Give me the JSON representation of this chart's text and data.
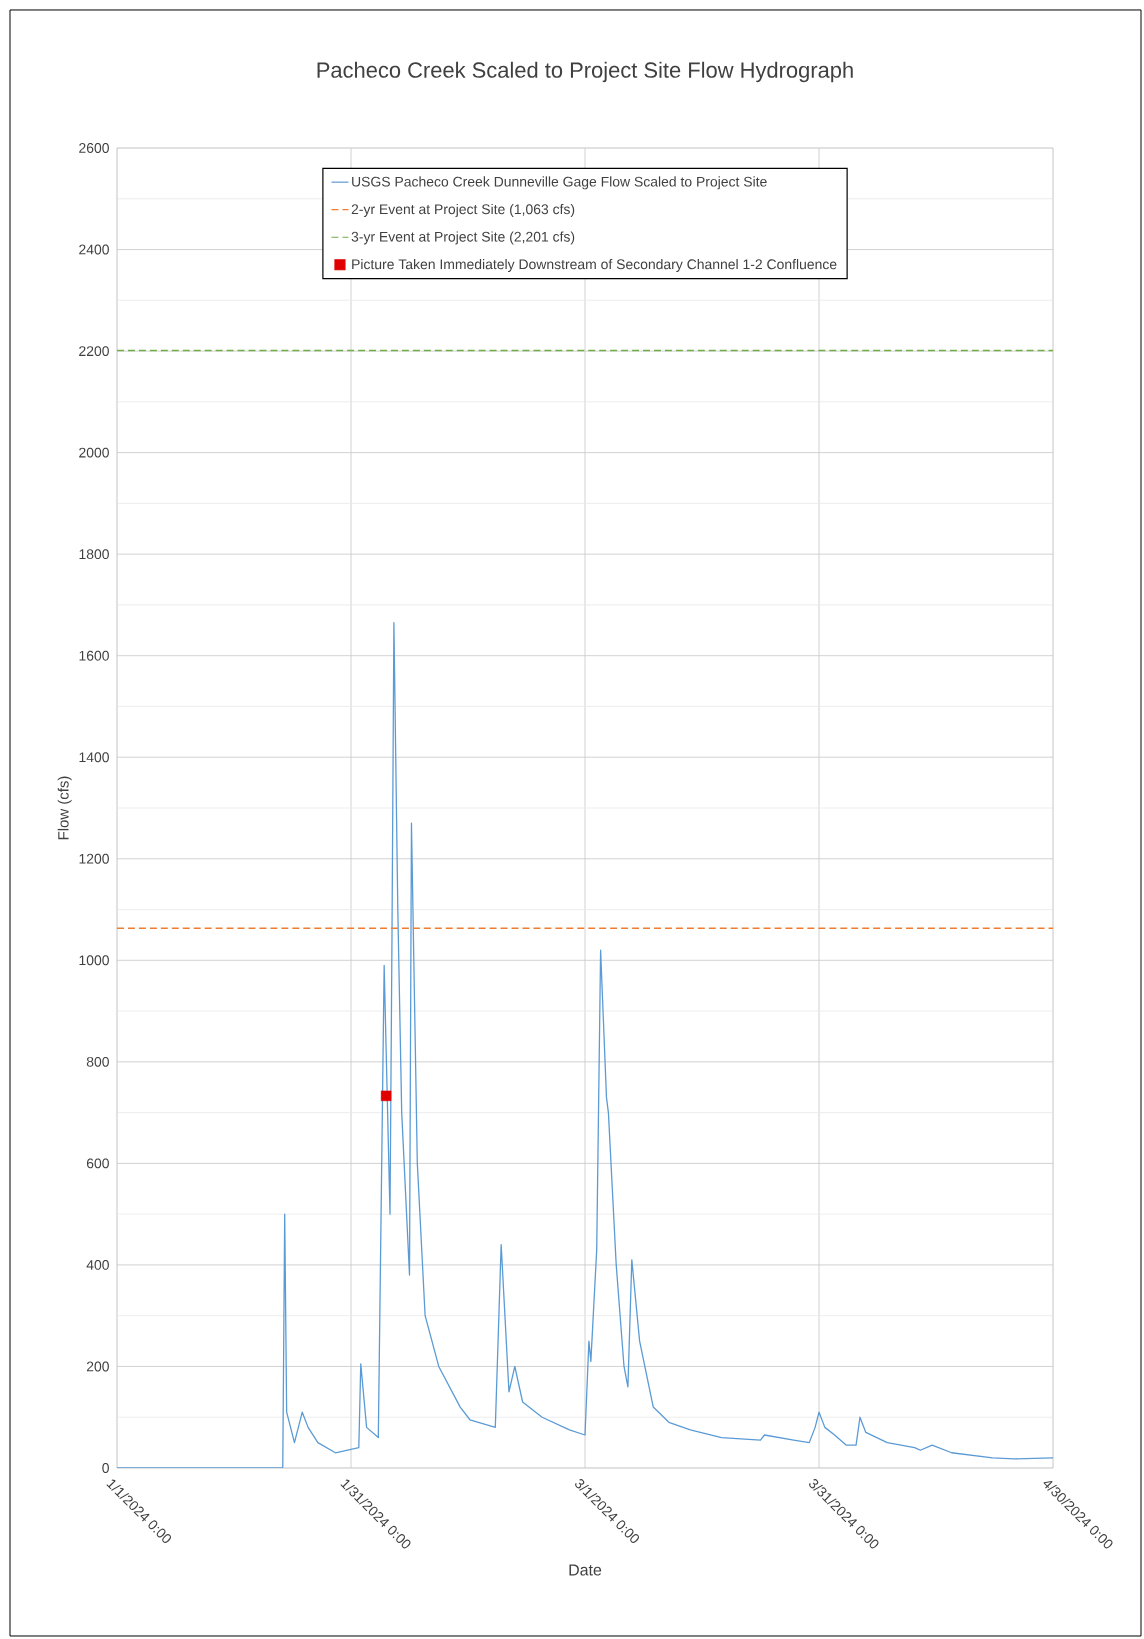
{
  "chart_data": {
    "type": "line",
    "title": "Pacheco Creek Scaled to Project Site Flow Hydrograph",
    "xlabel": "Date",
    "ylabel": "Flow (cfs)",
    "xlim": [
      "2024-01-01T00:00",
      "2024-04-30T00:00"
    ],
    "xticks": [
      {
        "value": "2024-01-01T00:00",
        "label": "1/1/2024 0:00"
      },
      {
        "value": "2024-01-31T00:00",
        "label": "1/31/2024 0:00"
      },
      {
        "value": "2024-03-01T00:00",
        "label": "3/1/2024 0:00"
      },
      {
        "value": "2024-03-31T00:00",
        "label": "3/31/2024 0:00"
      },
      {
        "value": "2024-04-30T00:00",
        "label": "4/30/2024 0:00"
      }
    ],
    "ylim": [
      0,
      2600
    ],
    "yticks": [
      0,
      200,
      400,
      600,
      800,
      1000,
      1200,
      1400,
      1600,
      1800,
      2000,
      2200,
      2400,
      2600
    ],
    "grid": true,
    "legend": "top",
    "series": [
      {
        "name": "USGS Pacheco Creek Dunneville Gage Flow Scaled to Project Site",
        "color": "#5b9bd5",
        "marker": "none",
        "line_style": "solid",
        "x": [
          "2024-01-01T00:00",
          "2024-01-22T06:00",
          "2024-01-22T12:00",
          "2024-01-22T18:00",
          "2024-01-23T18:00",
          "2024-01-24T18:00",
          "2024-01-25T12:00",
          "2024-01-26T18:00",
          "2024-01-29T00:00",
          "2024-02-01T00:00",
          "2024-02-01T06:00",
          "2024-02-02T00:00",
          "2024-02-03T12:00",
          "2024-02-04T06:00",
          "2024-02-05T00:00",
          "2024-02-05T06:00",
          "2024-02-05T12:00",
          "2024-02-06T00:00",
          "2024-02-06T12:00",
          "2024-02-07T12:00",
          "2024-02-07T18:00",
          "2024-02-08T12:00",
          "2024-02-09T12:00",
          "2024-02-11T06:00",
          "2024-02-14T00:00",
          "2024-02-15T06:00",
          "2024-02-18T12:00",
          "2024-02-19T06:00",
          "2024-02-20T06:00",
          "2024-02-21T00:00",
          "2024-02-22T00:00",
          "2024-02-24T12:00",
          "2024-02-28T00:00",
          "2024-03-01T00:00",
          "2024-03-01T12:00",
          "2024-03-01T18:00",
          "2024-03-02T12:00",
          "2024-03-03T00:00",
          "2024-03-03T18:00",
          "2024-03-04T00:00",
          "2024-03-05T00:00",
          "2024-03-06T00:00",
          "2024-03-06T12:00",
          "2024-03-07T00:00",
          "2024-03-08T00:00",
          "2024-03-09T18:00",
          "2024-03-11T18:00",
          "2024-03-14T12:00",
          "2024-03-18T12:00",
          "2024-03-23T12:00",
          "2024-03-24T00:00",
          "2024-03-27T18:00",
          "2024-03-29T18:00",
          "2024-03-30T12:00",
          "2024-03-31T00:00",
          "2024-03-31T18:00",
          "2024-04-02T00:00",
          "2024-04-03T12:00",
          "2024-04-04T18:00",
          "2024-04-05T06:00",
          "2024-04-06T00:00",
          "2024-04-08T18:00",
          "2024-04-12T06:00",
          "2024-04-13T00:00",
          "2024-04-14T12:00",
          "2024-04-17T00:00",
          "2024-04-22T06:00",
          "2024-04-25T00:00",
          "2024-04-30T00:00"
        ],
        "values": [
          0,
          0,
          500,
          110,
          50,
          110,
          80,
          50,
          30,
          40,
          205,
          80,
          60,
          990,
          500,
          1040,
          1665,
          1100,
          700,
          380,
          1270,
          600,
          300,
          200,
          120,
          95,
          80,
          440,
          150,
          200,
          130,
          100,
          75,
          65,
          250,
          210,
          430,
          1020,
          730,
          700,
          400,
          200,
          160,
          410,
          250,
          120,
          90,
          75,
          60,
          55,
          65,
          55,
          50,
          80,
          110,
          80,
          65,
          45,
          45,
          100,
          70,
          50,
          40,
          35,
          45,
          30,
          20,
          18,
          20
        ]
      },
      {
        "name": "Picture Taken Immediately Downstream of Secondary Channel 1-2 Confluence",
        "type": "scatter",
        "color": "#e00000",
        "marker": "square",
        "x": [
          "2024-02-04T12:00"
        ],
        "values": [
          733
        ]
      }
    ],
    "ref_lines": [
      {
        "axis": "y",
        "value": 1063,
        "label": "2-yr Event at Project Site (1,063 cfs)",
        "color": "#ed7d31",
        "line_style": "dashed"
      },
      {
        "axis": "y",
        "value": 2201,
        "label": "3-yr Event at Project Site (2,201 cfs)",
        "color": "#70ad47",
        "line_style": "dashed"
      }
    ]
  }
}
